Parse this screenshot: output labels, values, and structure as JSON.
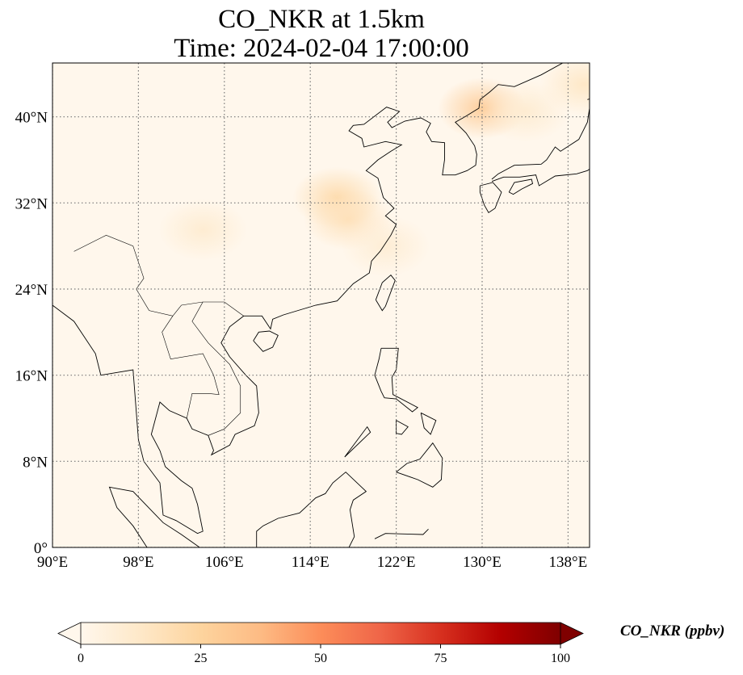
{
  "title": {
    "line1": "CO_NKR at 1.5km",
    "line2": "Time: 2024-02-04 17:00:00"
  },
  "map": {
    "lon_range": [
      90,
      140
    ],
    "lat_range": [
      0,
      45
    ],
    "lon_ticks": [
      {
        "value": 90,
        "label": "90°E"
      },
      {
        "value": 98,
        "label": "98°E"
      },
      {
        "value": 106,
        "label": "106°E"
      },
      {
        "value": 114,
        "label": "114°E"
      },
      {
        "value": 122,
        "label": "122°E"
      },
      {
        "value": 130,
        "label": "130°E"
      },
      {
        "value": 138,
        "label": "138°E"
      }
    ],
    "lat_ticks": [
      {
        "value": 0,
        "label": "0°"
      },
      {
        "value": 8,
        "label": "8°N"
      },
      {
        "value": 16,
        "label": "16°N"
      },
      {
        "value": 24,
        "label": "24°N"
      },
      {
        "value": 32,
        "label": "32°N"
      },
      {
        "value": 40,
        "label": "40°N"
      }
    ],
    "hotspots": [
      {
        "lon": 130,
        "lat": 40.8,
        "value": 30
      },
      {
        "lon": 116.5,
        "lat": 32.5,
        "value": 22
      },
      {
        "lon": 117.5,
        "lat": 30.5,
        "value": 18
      },
      {
        "lon": 104,
        "lat": 29.5,
        "value": 10
      },
      {
        "lon": 139.5,
        "lat": 43,
        "value": 14
      },
      {
        "lon": 134,
        "lat": 40.5,
        "value": 10
      },
      {
        "lon": 121,
        "lat": 28,
        "value": 9
      }
    ]
  },
  "colorbar": {
    "label": "CO_NKR (ppbv)",
    "range": [
      0,
      100
    ],
    "colors": [
      "#fff7ec",
      "#fee8c8",
      "#fdd49e",
      "#fdbb84",
      "#fc8d59",
      "#ef6548",
      "#d7301f",
      "#b30000",
      "#7f0000"
    ],
    "ticks": [
      {
        "value": 0,
        "label": "0"
      },
      {
        "value": 25,
        "label": "25"
      },
      {
        "value": 50,
        "label": "50"
      },
      {
        "value": 75,
        "label": "75"
      },
      {
        "value": 100,
        "label": "100"
      }
    ]
  }
}
